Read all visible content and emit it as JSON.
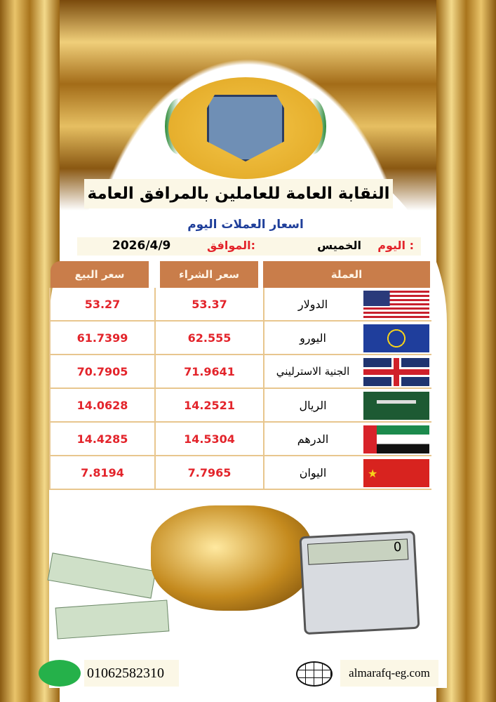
{
  "header": {
    "logo_text": "النقابة العامة للعاملين بالمرافق العامة",
    "title": "النقابة العامة للعاملين بالمرافق العامة",
    "subtitle": "اسعار العملات اليوم"
  },
  "date_row": {
    "day_label": "اليوم :",
    "day_value": "الخميس",
    "date_label": "الموافق:",
    "date_value": "2026/4/9"
  },
  "table": {
    "headers": {
      "currency": "العملة",
      "buy": "سعر الشراء",
      "sell": "سعر البيع"
    },
    "rows": [
      {
        "currency": "الدولار",
        "flag": "us-flag",
        "buy": "53.37",
        "sell": "53.27"
      },
      {
        "currency": "اليورو",
        "flag": "eu-flag",
        "buy": "62.555",
        "sell": "61.7399"
      },
      {
        "currency": "الجنية الاسترليني",
        "flag": "uk-flag",
        "buy": "71.9641",
        "sell": "70.7905"
      },
      {
        "currency": "الريال",
        "flag": "saudi-flag",
        "buy": "14.2521",
        "sell": "14.0628"
      },
      {
        "currency": "الدرهم",
        "flag": "uae-flag",
        "buy": "14.5304",
        "sell": "14.4285"
      },
      {
        "currency": "اليوان",
        "flag": "china-flag",
        "buy": "7.7965",
        "sell": "7.8194"
      }
    ]
  },
  "calculator_display": "0",
  "footer": {
    "phone": "01062582310",
    "website": "almarafq-eg.com"
  },
  "colors": {
    "header_bg": "#c97d4a",
    "value": "#e3242b",
    "subtitle": "#1f3f9a",
    "label": "#e3242b"
  }
}
